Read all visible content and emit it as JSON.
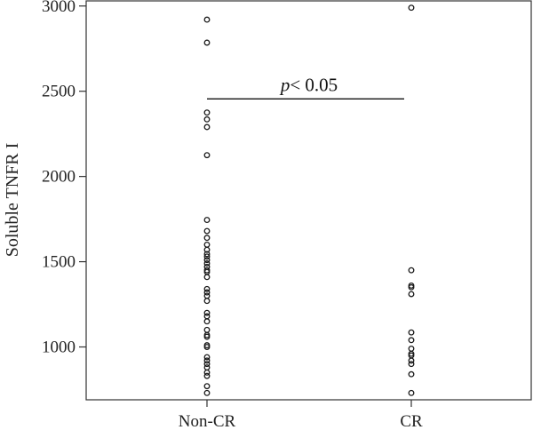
{
  "chart_data": {
    "type": "scatter",
    "title": "",
    "xlabel": "",
    "ylabel": "Soluble TNFR I",
    "categories": [
      "Non-CR",
      "CR"
    ],
    "ylim": [
      690,
      3030
    ],
    "yticks": [
      "1000",
      "1500",
      "2000",
      "2500",
      "3000"
    ],
    "grid": false,
    "legend": "none",
    "marker_color": "#1a1a1a",
    "series": [
      {
        "category": "Non-CR",
        "values": [
          2920,
          2785,
          2375,
          2335,
          2290,
          2125,
          1745,
          1680,
          1640,
          1600,
          1570,
          1545,
          1530,
          1510,
          1490,
          1470,
          1450,
          1440,
          1410,
          1340,
          1320,
          1300,
          1270,
          1200,
          1180,
          1150,
          1100,
          1070,
          1060,
          1010,
          1000,
          940,
          920,
          900,
          880,
          850,
          830,
          770,
          730
        ]
      },
      {
        "category": "CR",
        "values": [
          2990,
          1450,
          1360,
          1350,
          1310,
          1085,
          1040,
          990,
          960,
          950,
          920,
          900,
          840,
          730
        ]
      }
    ],
    "annotation": {
      "p_symbol": "p",
      "p_rest": "< 0.05",
      "from": "Non-CR",
      "to": "CR",
      "y": 2455
    }
  }
}
